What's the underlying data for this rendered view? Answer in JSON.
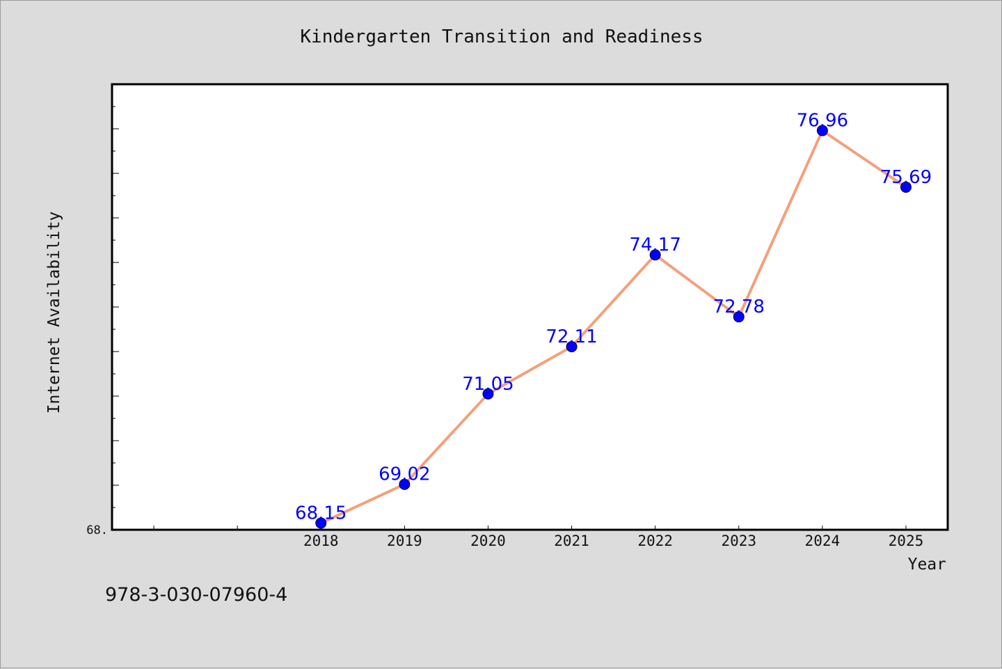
{
  "footer_code": "978-3-030-07960-4",
  "chart_data": {
    "type": "line",
    "title": "Kindergarten Transition and Readiness",
    "xlabel": "Year",
    "ylabel": "Internet Availability",
    "x": [
      "2018",
      "2019",
      "2020",
      "2021",
      "2022",
      "2023",
      "2024",
      "2025"
    ],
    "series": [
      {
        "values": [
          68.15,
          69.02,
          71.05,
          72.11,
          74.17,
          72.78,
          76.96,
          75.69
        ]
      }
    ],
    "point_labels": [
      "68.15",
      "69.02",
      "71.05",
      "72.11",
      "74.17",
      "72.78",
      "76.96",
      "75.69"
    ],
    "ytick_label": "68.",
    "ylim": [
      68.0,
      78.0
    ],
    "xlim": [
      2015.5,
      2025.5
    ],
    "grid": false,
    "legend": "none",
    "colors": {
      "line": "#f4a07a",
      "marker": "#0000ff",
      "point_label": "#0000ff",
      "plot_background": "#ffffff",
      "page_background": "#dcdcdc"
    }
  }
}
